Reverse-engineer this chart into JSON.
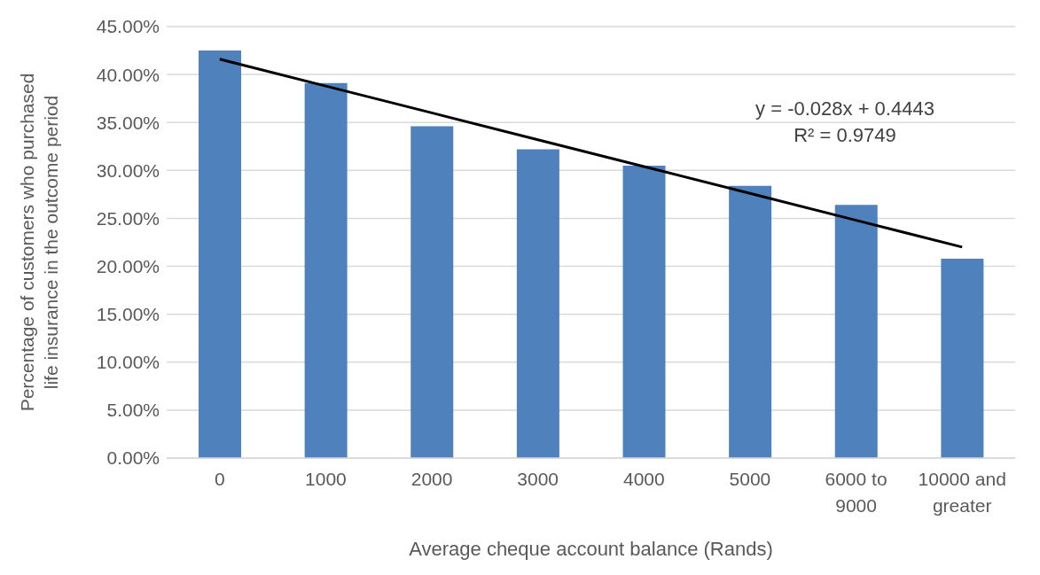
{
  "chart_data": {
    "type": "bar",
    "xlabel": "Average cheque account balance (Rands)",
    "ylabel": "Percentage of customers who purchased life insurance in the outcome period",
    "categories": [
      "0",
      "1000",
      "2000",
      "3000",
      "4000",
      "5000",
      "6000 to 9000",
      "10000 and greater"
    ],
    "series": [
      {
        "color": "#4f81bd",
        "values": [
          42.5,
          39.1,
          34.6,
          32.2,
          30.5,
          28.4,
          26.4,
          20.8
        ]
      },
      {
        "type": "line",
        "color": "#000000",
        "values": [
          41.6,
          38.8,
          36.0,
          33.2,
          30.4,
          27.6,
          24.8,
          22.0
        ]
      }
    ],
    "ylim": [
      0,
      45
    ],
    "yticks": [
      {
        "value": 0,
        "label": "0.00%"
      },
      {
        "value": 5,
        "label": "5.00%"
      },
      {
        "value": 10,
        "label": "10.00%"
      },
      {
        "value": 15,
        "label": "15.00%"
      },
      {
        "value": 20,
        "label": "20.00%"
      },
      {
        "value": 25,
        "label": "25.00%"
      },
      {
        "value": 30,
        "label": "30.00%"
      },
      {
        "value": 35,
        "label": "35.00%"
      },
      {
        "value": 40,
        "label": "40.00%"
      },
      {
        "value": 45,
        "label": "45.00%"
      }
    ],
    "grid": "y",
    "legend": false,
    "marker": "none",
    "annotations": [
      "y = -0.028x + 0.4443",
      "R² = 0.9749"
    ]
  }
}
